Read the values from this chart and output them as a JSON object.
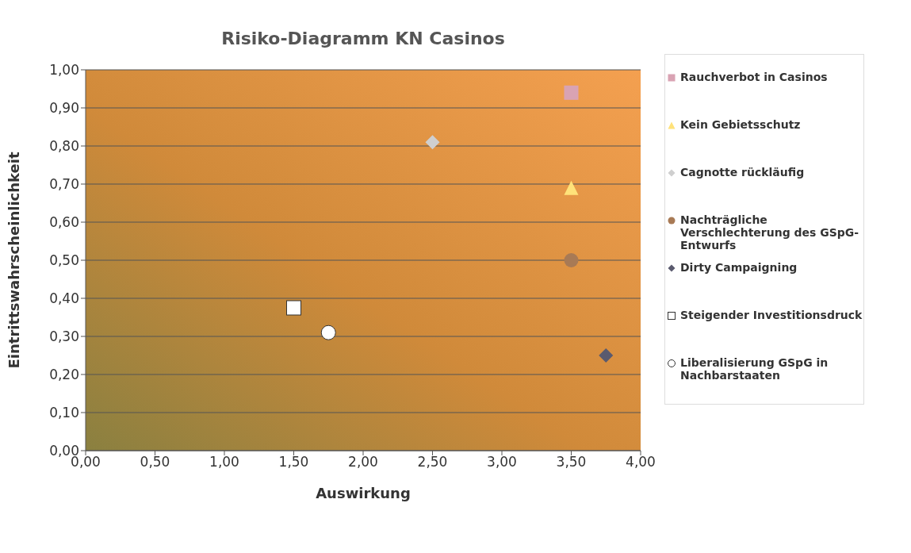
{
  "chart_data": {
    "type": "scatter",
    "title": "Risiko-Diagramm KN Casinos",
    "xlabel": "Auswirkung",
    "ylabel": "Eintrittswahrscheinlichkeit",
    "xlim": [
      0,
      4
    ],
    "xticks": [
      {
        "value": 0,
        "label": "0,00"
      },
      {
        "value": 0.5,
        "label": "0,50"
      },
      {
        "value": 1,
        "label": "1,00"
      },
      {
        "value": 1.5,
        "label": "1,50"
      },
      {
        "value": 2,
        "label": "2,00"
      },
      {
        "value": 2.5,
        "label": "2,50"
      },
      {
        "value": 3,
        "label": "3,00"
      },
      {
        "value": 3.5,
        "label": "3,50"
      },
      {
        "value": 4,
        "label": "4,00"
      }
    ],
    "ylim": [
      0,
      1
    ],
    "yticks": [
      {
        "value": 0,
        "label": "0,00"
      },
      {
        "value": 0.1,
        "label": "0,10"
      },
      {
        "value": 0.2,
        "label": "0,20"
      },
      {
        "value": 0.3,
        "label": "0,30"
      },
      {
        "value": 0.4,
        "label": "0,40"
      },
      {
        "value": 0.5,
        "label": "0,50"
      },
      {
        "value": 0.6,
        "label": "0,60"
      },
      {
        "value": 0.7,
        "label": "0,70"
      },
      {
        "value": 0.8,
        "label": "0,80"
      },
      {
        "value": 0.9,
        "label": "0,90"
      },
      {
        "value": 1,
        "label": "1,00"
      }
    ],
    "grid": "y",
    "legend": "right",
    "series": [
      {
        "name": "Rauchverbot in Casinos",
        "color": "#d9a3b3",
        "marker": "square",
        "x": [
          3.5
        ],
        "values": [
          0.94
        ]
      },
      {
        "name": "Kein Gebietsschutz",
        "color": "#ffe27a",
        "marker": "triangle",
        "x": [
          3.5
        ],
        "values": [
          0.69
        ]
      },
      {
        "name": "Cagnotte rückläufig",
        "color": "#cfcfcf",
        "marker": "diamond",
        "x": [
          2.5
        ],
        "values": [
          0.81
        ]
      },
      {
        "name": "Nachträgliche Verschlechterung des GSpG-Entwurfs",
        "color": "#a87a55",
        "marker": "circle",
        "x": [
          3.5
        ],
        "values": [
          0.5
        ]
      },
      {
        "name": "Dirty Campaigning",
        "color": "#5a5a6e",
        "marker": "diamond",
        "x": [
          3.75
        ],
        "values": [
          0.25
        ]
      },
      {
        "name": "Steigender Investitionsdruck",
        "color": "#ffffff",
        "marker": "square",
        "x": [
          1.5
        ],
        "values": [
          0.375
        ]
      },
      {
        "name": "Liberalisierung GSpG in Nachbarstaaten",
        "color": "#ffffff",
        "marker": "circle",
        "x": [
          1.75
        ],
        "values": [
          0.31
        ]
      }
    ]
  }
}
